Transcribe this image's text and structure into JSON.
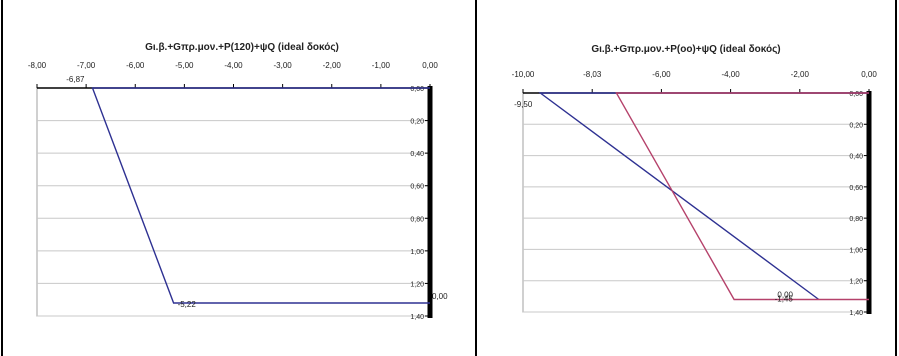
{
  "chart_data": [
    {
      "type": "line",
      "title": "Gι.β.+Gπρ.μον.+P(120)+ψQ (ideal δοκός)",
      "xlabel": "",
      "ylabel": "",
      "xlim": [
        -8.0,
        0.0
      ],
      "ylim": [
        0.0,
        1.4
      ],
      "x_ticks": [
        "-8,00",
        "-7,00",
        "-6,00",
        "-5,00",
        "-4,00",
        "-3,00",
        "-2,00",
        "-1,00",
        "0,00"
      ],
      "y_ticks": [
        "0,00",
        "0,20",
        "0,40",
        "0,60",
        "0,80",
        "1,00",
        "1,20",
        "1,40"
      ],
      "grid": true,
      "series": [
        {
          "color": "#2e3192",
          "points": [
            [
              0.0,
              0.0
            ],
            [
              -6.87,
              0.0
            ],
            [
              -5.22,
              1.32
            ],
            [
              0.0,
              1.32
            ]
          ]
        }
      ],
      "annotations": [
        {
          "text": "-6,87",
          "x": -6.87,
          "y": 0.0
        },
        {
          "text": "-5,22",
          "x": -5.22,
          "y": 1.32
        },
        {
          "text": "0,00",
          "x": 0.0,
          "y": 1.32
        }
      ]
    },
    {
      "type": "line",
      "title": "Gι.β.+Gπρ.μον.+P(oo)+ψQ (ideal δοκός)",
      "xlabel": "",
      "ylabel": "",
      "xlim": [
        -10.0,
        0.0
      ],
      "ylim": [
        0.0,
        1.4
      ],
      "x_ticks": [
        "-10,00",
        "-8,03",
        "-6,00",
        "-4,00",
        "-2,00",
        "0,00"
      ],
      "y_ticks": [
        "0,00",
        "0,20",
        "0,40",
        "0,60",
        "0,80",
        "1,00",
        "1,20",
        "1,40"
      ],
      "grid": true,
      "series": [
        {
          "color": "#2e3192",
          "points": [
            [
              0.0,
              0.0
            ],
            [
              -9.5,
              0.0
            ],
            [
              -1.45,
              1.32
            ]
          ]
        },
        {
          "color": "#b5426b",
          "points": [
            [
              0.0,
              0.0
            ],
            [
              -7.3,
              0.0
            ],
            [
              -3.9,
              1.32
            ],
            [
              0.0,
              1.32
            ]
          ]
        }
      ],
      "annotations": [
        {
          "text": "-9,50",
          "x": -9.5,
          "y": 0.0
        },
        {
          "text": "-1,45",
          "x": -1.45,
          "y": 1.32
        },
        {
          "text": "0,00",
          "x": 0.0,
          "y": 1.32
        }
      ]
    }
  ]
}
